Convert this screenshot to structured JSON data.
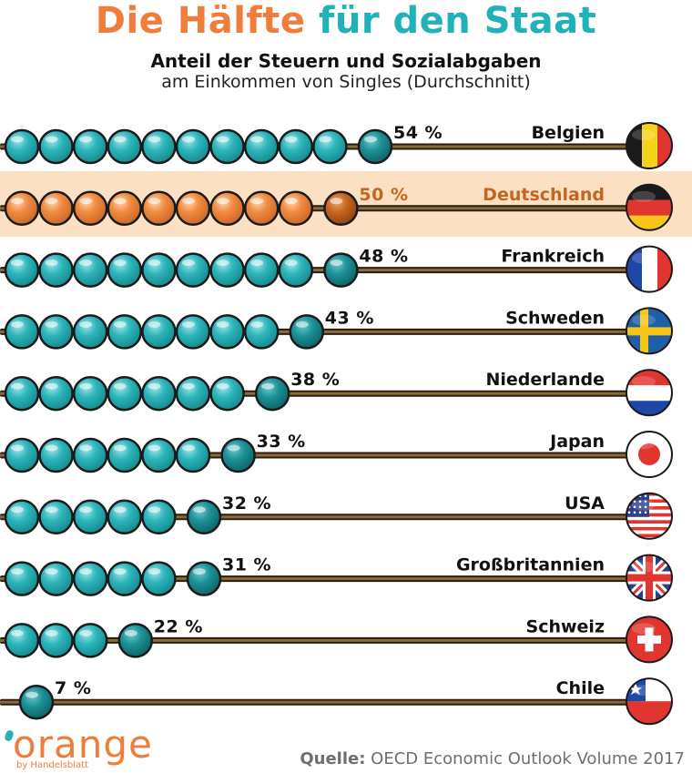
{
  "header": {
    "title_part1": "Die Hälfte",
    "title_part2": "für den Staat",
    "subtitle": "Anteil der Steuern und Sozialabgaben",
    "subtitle2": "am Einkommen von Singles (Durchschnitt)"
  },
  "footer": {
    "logo_text": "orange",
    "logo_sub": "by Handelsblatt",
    "source_label": "Quelle:",
    "source_text": "OECD Economic Outlook Volume 2017"
  },
  "colors": {
    "teal": "#2bb5ba",
    "teal_dark": "#17898e",
    "orange": "#f08a3e",
    "orange_dark": "#c6651f",
    "highlight_bg": "#fbe0c4",
    "rod": "#8a6a3a",
    "highlight_text": "#c6651f"
  },
  "chart_data": {
    "type": "bar",
    "title": "Die Hälfte für den Staat",
    "subtitle": "Anteil der Steuern und Sozialabgaben am Einkommen von Singles (Durchschnitt)",
    "unit": "%",
    "highlight": "Deutschland",
    "categories": [
      "Belgien",
      "Deutschland",
      "Frankreich",
      "Schweden",
      "Niederlande",
      "Japan",
      "USA",
      "Großbritannien",
      "Schweiz",
      "Chile"
    ],
    "values": [
      54,
      50,
      48,
      43,
      38,
      33,
      32,
      31,
      22,
      7
    ],
    "labels": [
      "54 %",
      "50 %",
      "48 %",
      "43 %",
      "38 %",
      "33 %",
      "32 %",
      "31 %",
      "22 %",
      "7 %"
    ],
    "flags": [
      "belgium-flag",
      "germany-flag",
      "france-flag",
      "sweden-flag",
      "netherlands-flag",
      "japan-flag",
      "usa-flag",
      "uk-flag",
      "switzerland-flag",
      "chile-flag"
    ]
  }
}
